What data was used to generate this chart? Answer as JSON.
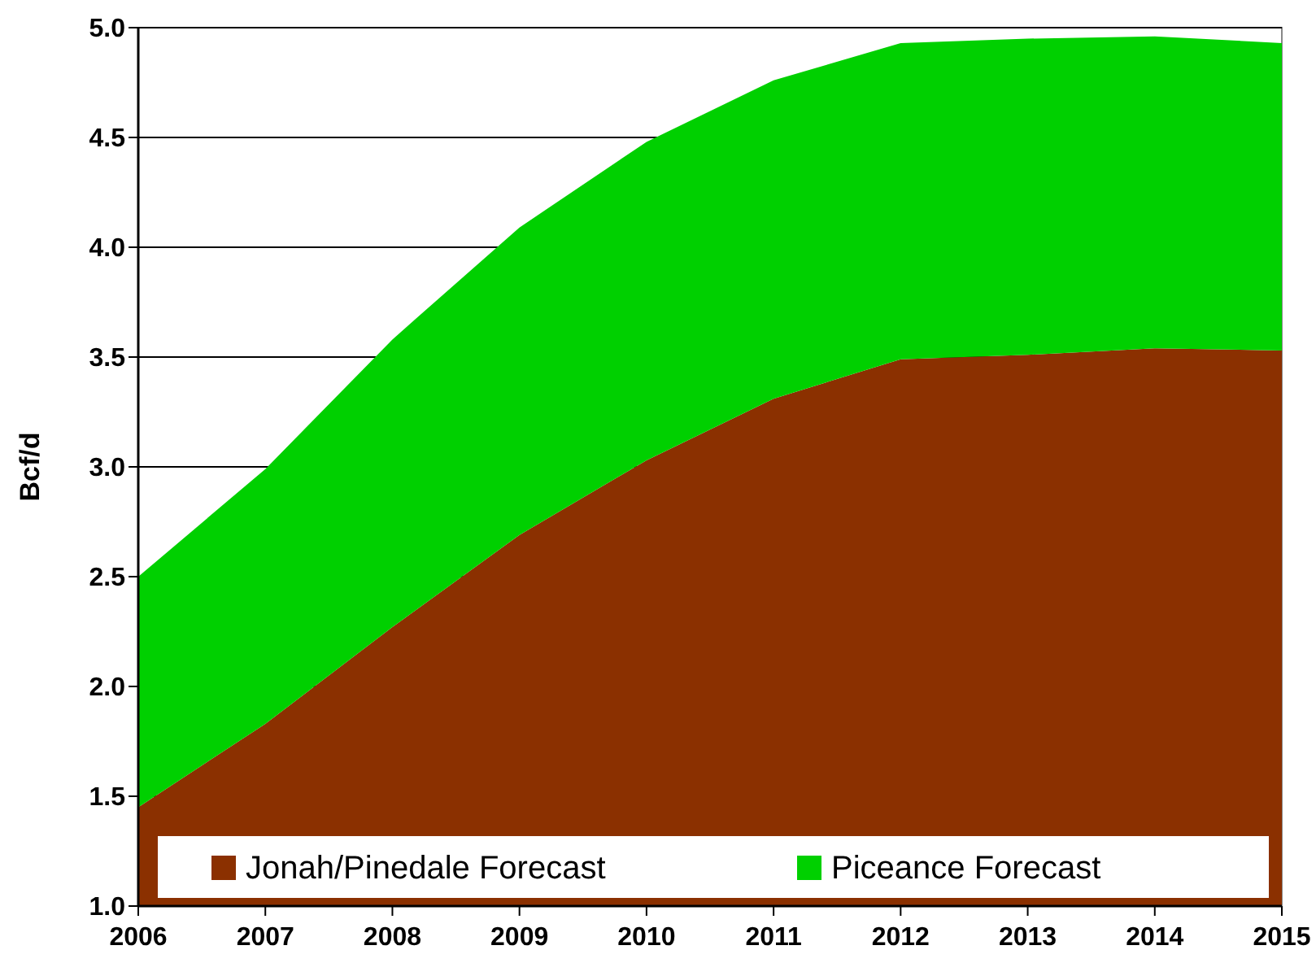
{
  "chart_data": {
    "type": "area",
    "stacked": true,
    "ylabel": "Bcf/d",
    "x": [
      2006,
      2007,
      2008,
      2009,
      2010,
      2011,
      2012,
      2013,
      2014,
      2015
    ],
    "xlim": [
      2006,
      2015
    ],
    "xticks": [
      2006,
      2007,
      2008,
      2009,
      2010,
      2011,
      2012,
      2013,
      2014,
      2015
    ],
    "ylim": [
      1.0,
      5.0
    ],
    "yticks": [
      {
        "value": 1,
        "label": "1.0"
      },
      {
        "value": 1.5,
        "label": "1.5"
      },
      {
        "value": 2,
        "label": "2.0"
      },
      {
        "value": 2.5,
        "label": "2.5"
      },
      {
        "value": 3,
        "label": "3.0"
      },
      {
        "value": 3.5,
        "label": "3.5"
      },
      {
        "value": 4,
        "label": "4.0"
      },
      {
        "value": 4.5,
        "label": "4.5"
      },
      {
        "value": 5,
        "label": "5.0"
      }
    ],
    "grid": "y",
    "legend": "bottom",
    "series": [
      {
        "name": "Jonah/Pinedale Forecast",
        "color": "#8b3000",
        "values": [
          1.45,
          1.83,
          2.27,
          2.69,
          3.03,
          3.31,
          3.49,
          3.51,
          3.54,
          3.53
        ]
      },
      {
        "name": "Piceance Forecast",
        "color": "#00d000",
        "values": [
          1.05,
          1.16,
          1.31,
          1.4,
          1.45,
          1.45,
          1.44,
          1.44,
          1.42,
          1.4
        ]
      }
    ]
  }
}
